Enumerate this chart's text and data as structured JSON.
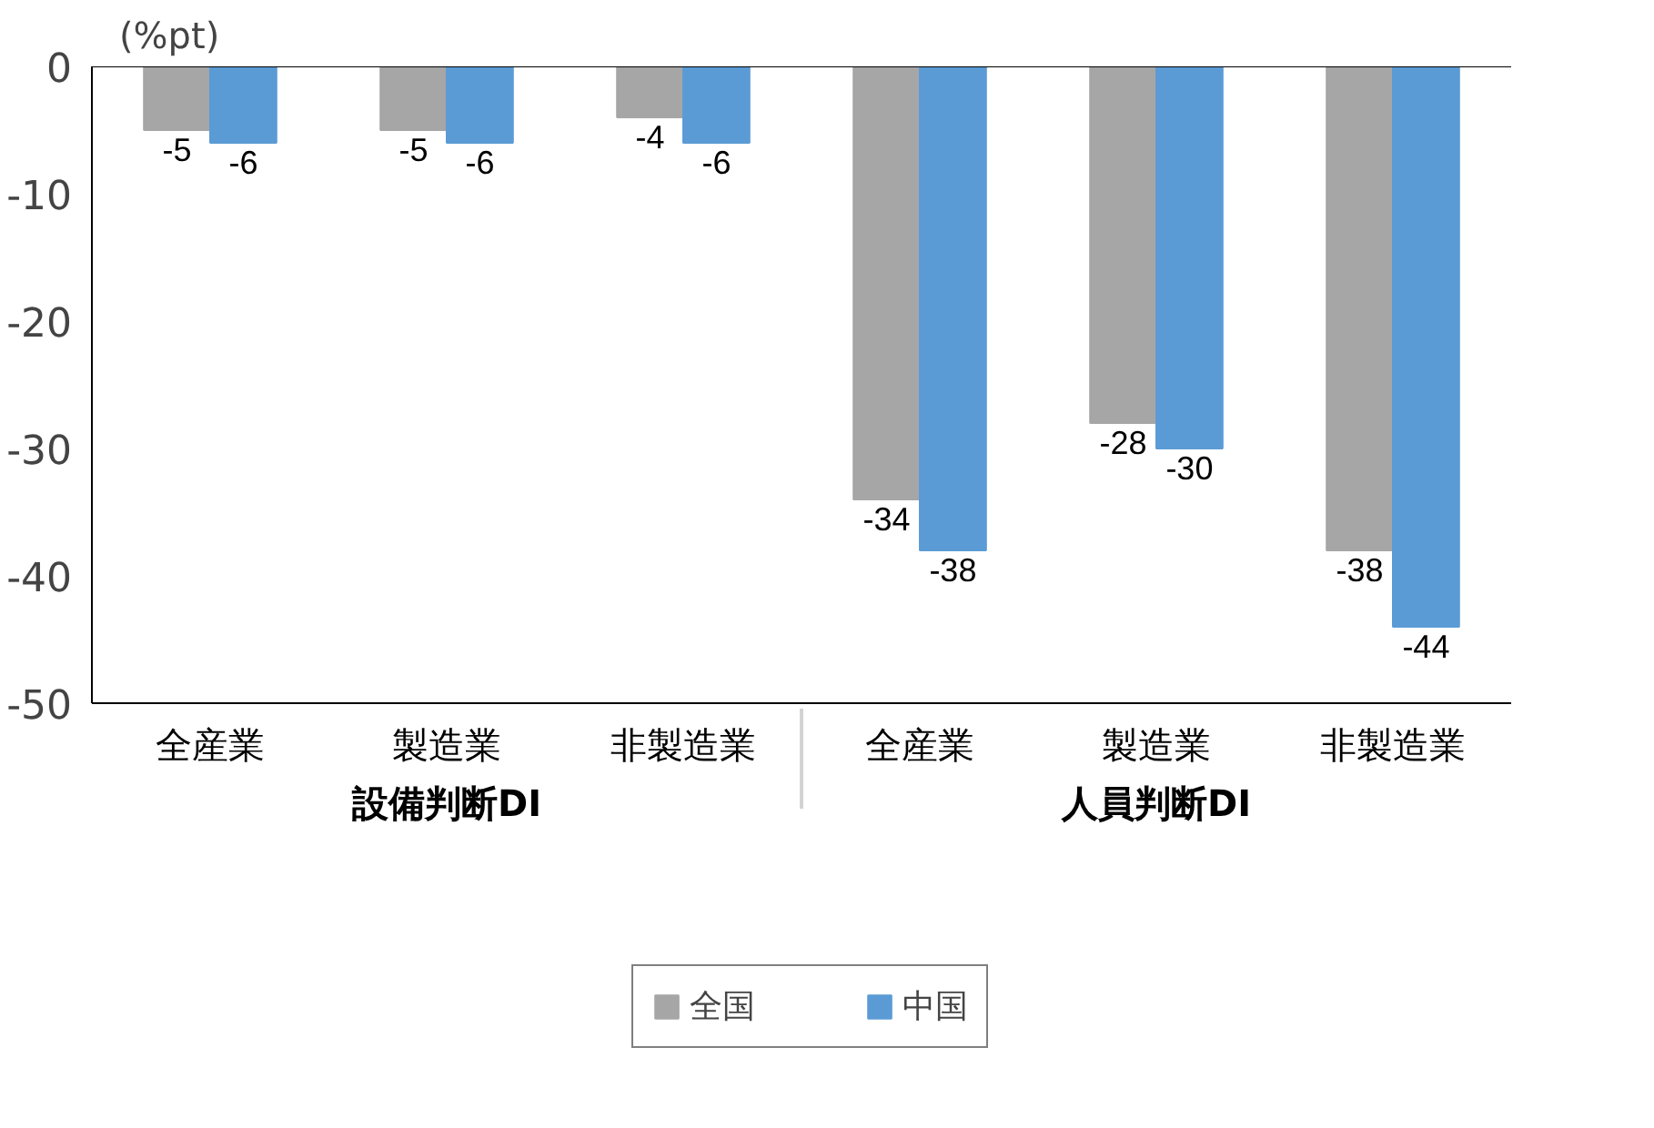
{
  "chart_data": {
    "type": "bar",
    "ylabel": "(%pt)",
    "categories": [
      "全産業",
      "製造業",
      "非製造業",
      "全産業",
      "製造業",
      "非製造業"
    ],
    "annotations": [
      "設備判断DI",
      "人員判断DI"
    ],
    "series": [
      {
        "name": "全国",
        "color": "#a6a6a6",
        "values": [
          -5,
          -5,
          -4,
          -34,
          -28,
          -38
        ]
      },
      {
        "name": "中国",
        "color": "#5b9bd5",
        "values": [
          -6,
          -6,
          -6,
          -38,
          -30,
          -44
        ]
      }
    ],
    "ylim": [
      -50,
      0
    ],
    "yticks": [
      0,
      -10,
      -20,
      -30,
      -40,
      -50
    ],
    "data_labels": true,
    "grid": false,
    "legend": "bottom"
  }
}
